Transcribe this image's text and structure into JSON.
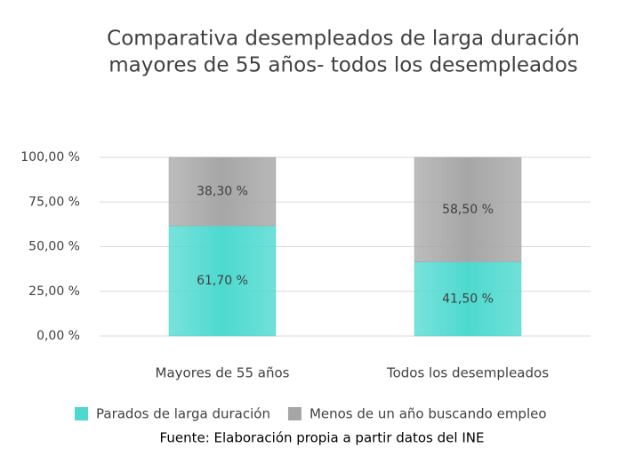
{
  "chart_data": {
    "type": "stacked_bar",
    "title": [
      "Comparativa desempleados de larga duración",
      "mayores de 55 años- todos los desempleados"
    ],
    "categories": [
      "Mayores de 55 años",
      "Todos los desempleados"
    ],
    "series": [
      {
        "name": "Parados de larga duración",
        "color": "#4dd9cf",
        "values": [
          61.7,
          41.5
        ],
        "value_labels": [
          "61,70 %",
          "41,50 %"
        ]
      },
      {
        "name": "Menos de un año buscando empleo",
        "color": "#a6a6a6",
        "values": [
          38.3,
          58.5
        ],
        "value_labels": [
          "38,30 %",
          "58,50 %"
        ]
      }
    ],
    "ylim": [
      0,
      100
    ],
    "yticks": [
      {
        "value": 0,
        "label": "0,00 %"
      },
      {
        "value": 25,
        "label": "25,00 %"
      },
      {
        "value": 50,
        "label": "50,00 %"
      },
      {
        "value": 75,
        "label": "75,00 %"
      },
      {
        "value": 100,
        "label": "100,00 %"
      }
    ],
    "grid": true,
    "legend": "bottom",
    "source": "Fuente: Elaboración propia a partir datos del INE"
  }
}
